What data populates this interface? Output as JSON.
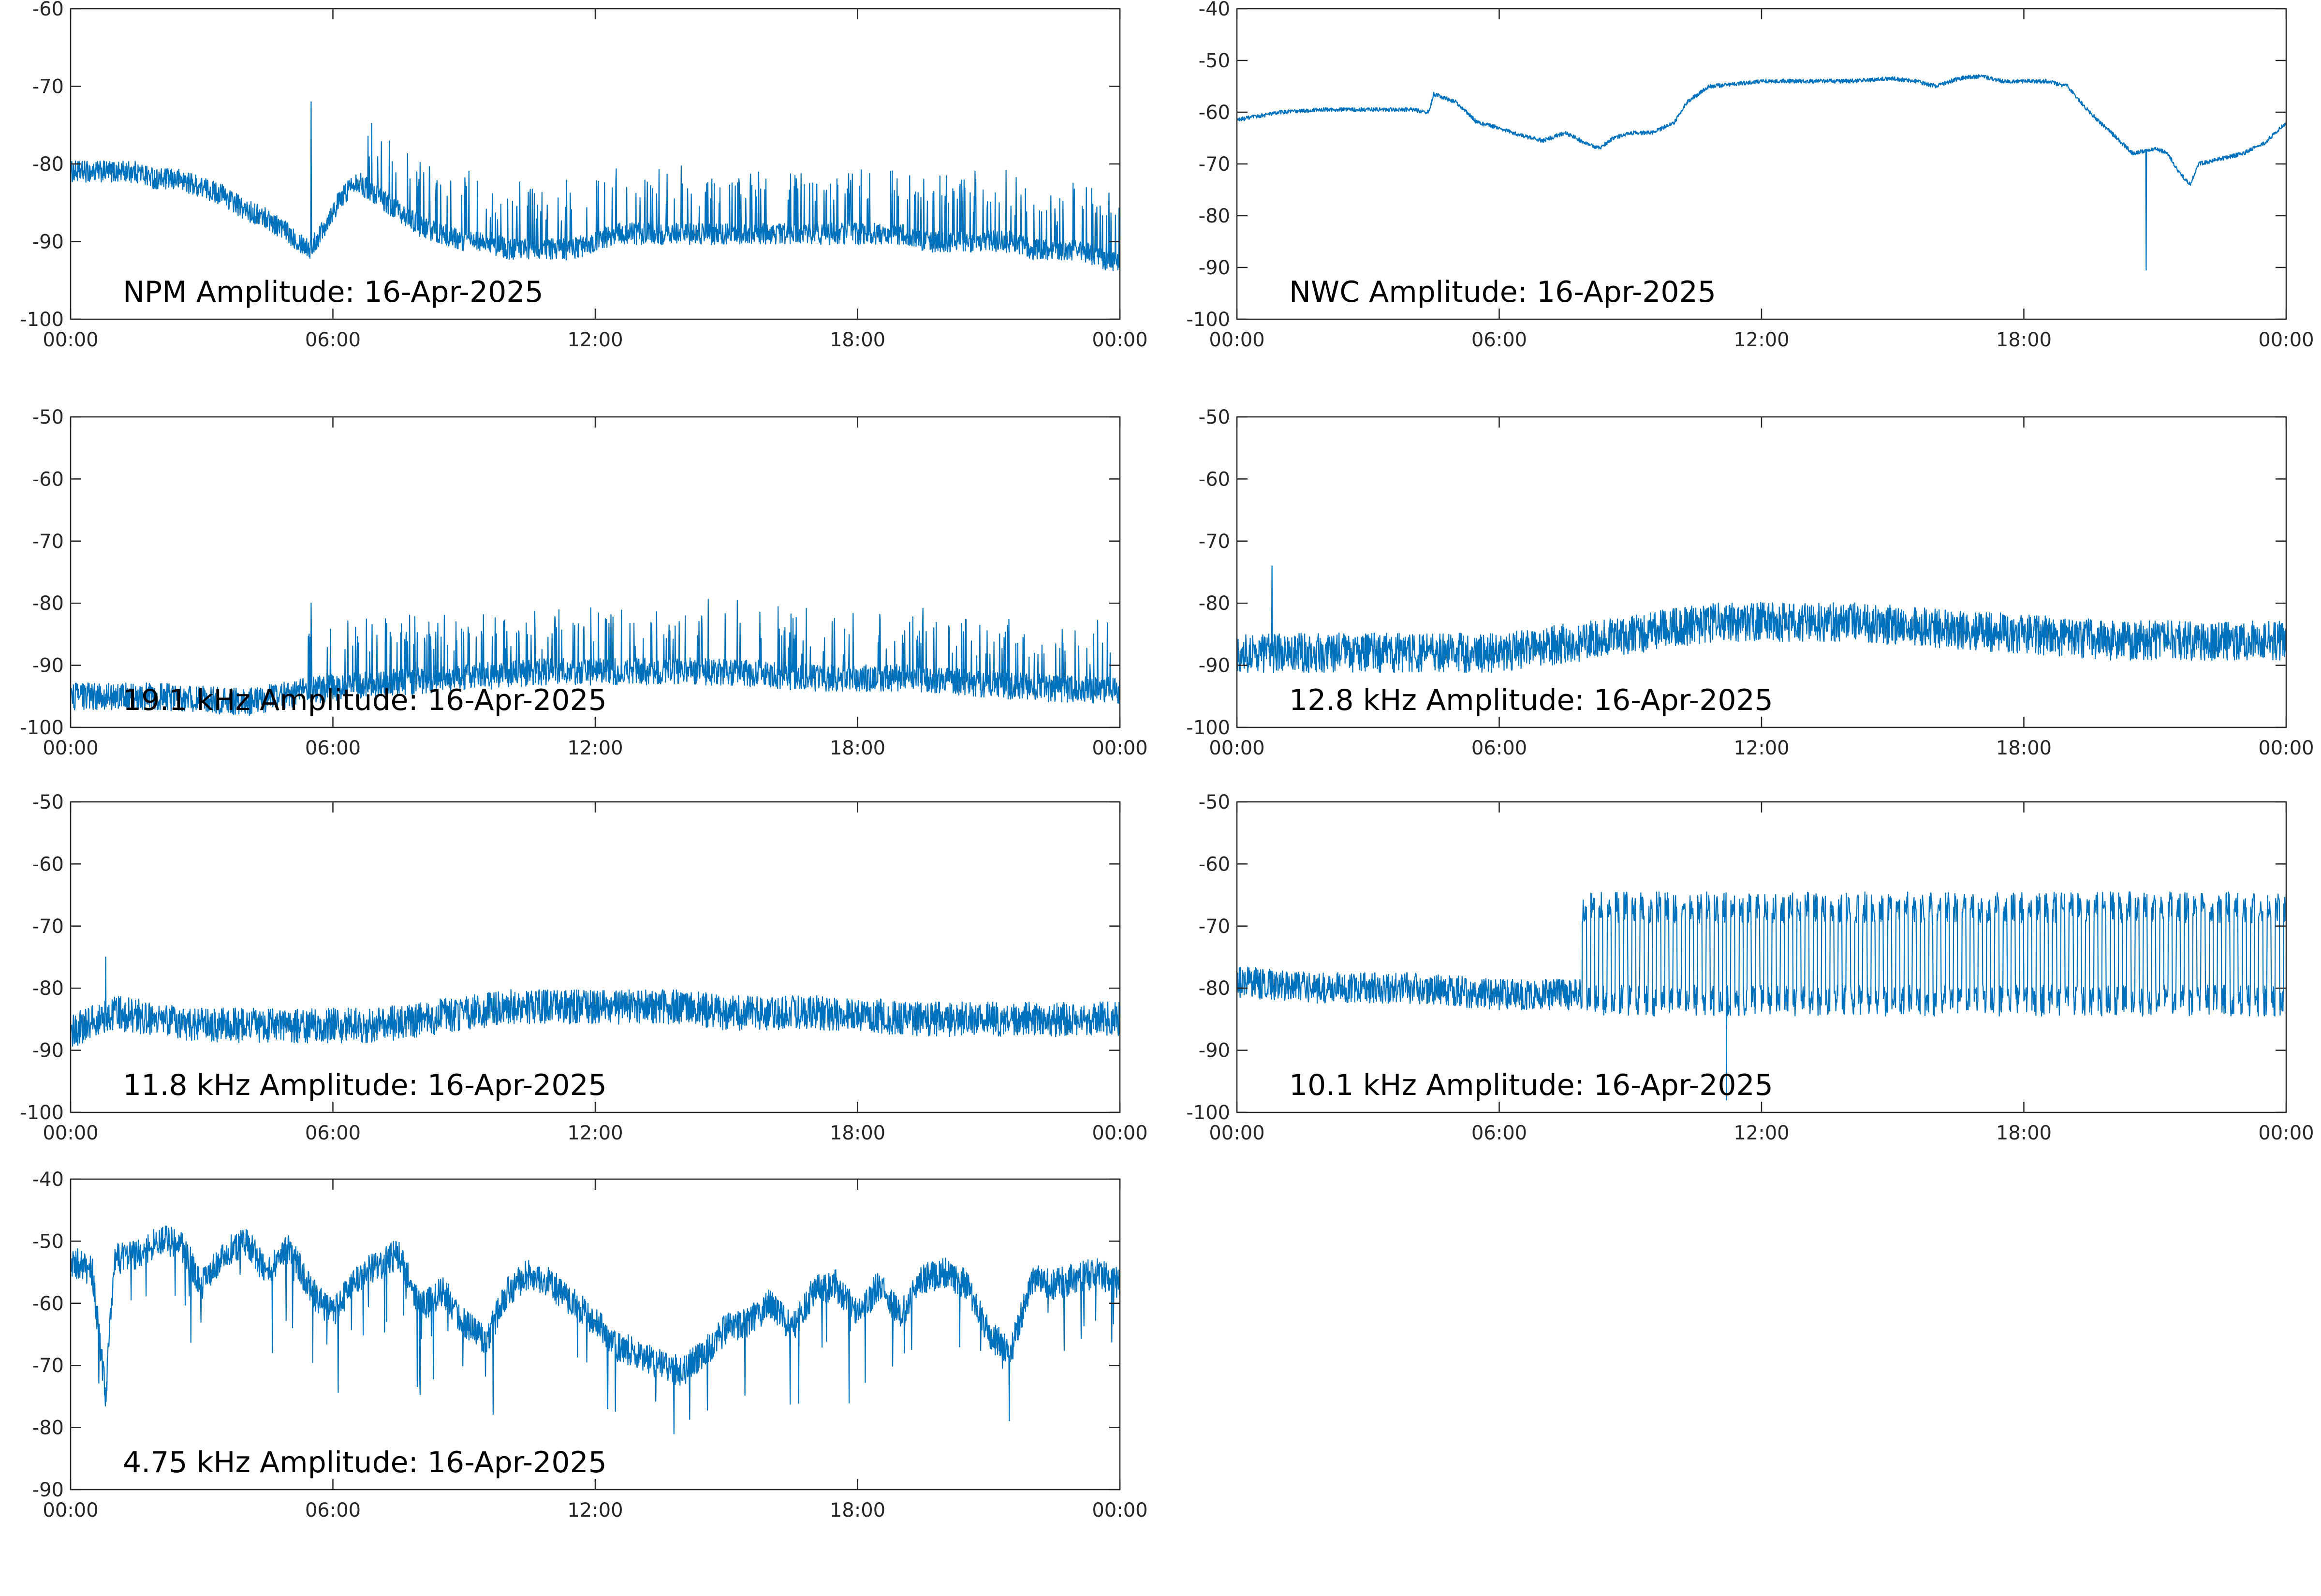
{
  "chart_data": [
    {
      "type": "line",
      "title": "NPM Amplitude: 16-Apr-2025",
      "xlabel": "",
      "ylabel": "",
      "x_ticks": [
        "00:00",
        "06:00",
        "12:00",
        "18:00",
        "00:00"
      ],
      "ylim": [
        -100,
        -60
      ],
      "y_ticks": [
        -60,
        -70,
        -80,
        -90,
        -100
      ],
      "grid": false,
      "series": [
        {
          "color": "#0072bd",
          "x_hours": [
            0,
            0.5,
            1,
            1.5,
            2,
            2.5,
            3,
            3.5,
            4,
            4.5,
            5,
            5.5,
            6,
            6.5,
            7,
            7.5,
            8,
            8.5,
            9,
            9.5,
            10,
            10.5,
            11,
            11.5,
            12,
            12.5,
            13,
            13.5,
            14,
            14.5,
            15,
            15.5,
            16,
            16.5,
            17,
            17.5,
            18,
            18.5,
            19,
            19.5,
            20,
            20.5,
            21,
            21.5,
            22,
            22.5,
            23,
            23.5,
            24
          ],
          "y": [
            -81,
            -81,
            -81,
            -81,
            -82,
            -82,
            -83,
            -84,
            -86,
            -87,
            -89,
            -91,
            -86,
            -82,
            -84,
            -86,
            -88,
            -89,
            -90,
            -90,
            -91,
            -91,
            -91,
            -91,
            -90,
            -89,
            -89,
            -89,
            -89,
            -89,
            -89,
            -89,
            -89,
            -89,
            -89,
            -89,
            -89,
            -89,
            -89,
            -90,
            -90,
            -90,
            -90,
            -90,
            -91,
            -91,
            -91,
            -92,
            -93
          ],
          "noise": 1.4,
          "spikes_up": {
            "start_h": 6.8,
            "end_h": 24,
            "per_hour": 14,
            "height": 8
          },
          "annotations": [
            {
              "x_hour": 5.5,
              "y": -72
            }
          ]
        }
      ]
    },
    {
      "type": "line",
      "title": "NWC Amplitude: 16-Apr-2025",
      "xlabel": "",
      "ylabel": "",
      "x_ticks": [
        "00:00",
        "06:00",
        "12:00",
        "18:00",
        "00:00"
      ],
      "ylim": [
        -100,
        -40
      ],
      "y_ticks": [
        -40,
        -50,
        -60,
        -70,
        -80,
        -90,
        -100
      ],
      "grid": false,
      "series": [
        {
          "color": "#0072bd",
          "x_hours": [
            0,
            1,
            2,
            3,
            4,
            4.4,
            4.5,
            5,
            5.5,
            6,
            6.5,
            7,
            7.5,
            8,
            8.3,
            8.6,
            9,
            9.5,
            10,
            10.3,
            10.8,
            11.5,
            12,
            13,
            14,
            15,
            15.5,
            16,
            16.5,
            17,
            17.5,
            18,
            18.5,
            19,
            19.5,
            20,
            20.5,
            21,
            21.3,
            21.5,
            21.8,
            22,
            22.5,
            23,
            23.5,
            24
          ],
          "y": [
            -61.5,
            -60,
            -59.5,
            -59.5,
            -59.5,
            -60,
            -56.5,
            -58,
            -62,
            -63,
            -64.5,
            -65.5,
            -64,
            -66,
            -67,
            -65,
            -64,
            -64,
            -62,
            -58,
            -55,
            -54.5,
            -54,
            -54,
            -54,
            -53.5,
            -54,
            -55,
            -53.5,
            -53,
            -54,
            -54,
            -54,
            -55,
            -60,
            -64,
            -68,
            -67,
            -68,
            -71,
            -74,
            -70,
            -69,
            -68,
            -66,
            -62
          ],
          "noise": 0.4,
          "annotations": [
            {
              "x_hour": 20.8,
              "y": -90.5
            }
          ]
        }
      ]
    },
    {
      "type": "line",
      "title": "19.1 kHz Amplitude: 16-Apr-2025",
      "xlabel": "",
      "ylabel": "",
      "x_ticks": [
        "00:00",
        "06:00",
        "12:00",
        "18:00",
        "00:00"
      ],
      "ylim": [
        -100,
        -50
      ],
      "y_ticks": [
        -50,
        -60,
        -70,
        -80,
        -90,
        -100
      ],
      "grid": false,
      "series": [
        {
          "color": "#0072bd",
          "x_hours": [
            0,
            2,
            4,
            5.5,
            7,
            9,
            11,
            13,
            15,
            17,
            19,
            21,
            23,
            24
          ],
          "y": [
            -95,
            -95,
            -96,
            -94,
            -93,
            -92,
            -91,
            -91,
            -91,
            -92,
            -92,
            -93,
            -94,
            -94
          ],
          "noise": 2.2,
          "spikes_up": {
            "start_h": 5.4,
            "end_h": 24,
            "per_hour": 12,
            "height": 10
          },
          "annotations": [
            {
              "x_hour": 5.5,
              "y": -80
            }
          ]
        }
      ]
    },
    {
      "type": "line",
      "title": "12.8 kHz Amplitude: 16-Apr-2025",
      "xlabel": "",
      "ylabel": "",
      "x_ticks": [
        "00:00",
        "06:00",
        "12:00",
        "18:00",
        "00:00"
      ],
      "ylim": [
        -100,
        -50
      ],
      "y_ticks": [
        -50,
        -60,
        -70,
        -80,
        -90,
        -100
      ],
      "grid": false,
      "series": [
        {
          "color": "#0072bd",
          "x_hours": [
            0,
            2,
            4,
            6,
            7,
            8,
            9,
            10,
            11,
            12,
            14,
            16,
            18,
            20,
            22,
            24
          ],
          "y": [
            -88,
            -88,
            -88,
            -88,
            -87,
            -86,
            -85,
            -84,
            -83,
            -83,
            -83,
            -84,
            -85,
            -86,
            -86,
            -86
          ],
          "noise": 3.2,
          "annotations": [
            {
              "x_hour": 0.8,
              "y": -74
            }
          ]
        }
      ]
    },
    {
      "type": "line",
      "title": "11.8 kHz Amplitude: 16-Apr-2025",
      "xlabel": "",
      "ylabel": "",
      "x_ticks": [
        "00:00",
        "06:00",
        "12:00",
        "18:00",
        "00:00"
      ],
      "ylim": [
        -100,
        -50
      ],
      "y_ticks": [
        -50,
        -60,
        -70,
        -80,
        -90,
        -100
      ],
      "grid": false,
      "series": [
        {
          "color": "#0072bd",
          "x_hours": [
            0,
            1,
            2,
            3,
            4,
            5,
            6,
            7,
            8,
            9,
            10,
            11,
            12,
            13,
            14,
            15,
            16,
            17,
            18,
            19,
            20,
            21,
            22,
            23,
            24
          ],
          "y": [
            -87,
            -84,
            -85,
            -86,
            -86,
            -86,
            -86,
            -86,
            -85,
            -84,
            -83,
            -83,
            -83,
            -83,
            -83,
            -84,
            -84,
            -84,
            -84,
            -85,
            -85,
            -85,
            -85,
            -85,
            -85
          ],
          "noise": 2.8,
          "annotations": [
            {
              "x_hour": 0.8,
              "y": -75
            }
          ]
        }
      ]
    },
    {
      "type": "line",
      "title": "10.1 kHz Amplitude: 16-Apr-2025",
      "xlabel": "",
      "ylabel": "",
      "x_ticks": [
        "00:00",
        "06:00",
        "12:00",
        "18:00",
        "00:00"
      ],
      "ylim": [
        -100,
        -50
      ],
      "y_ticks": [
        -50,
        -60,
        -70,
        -80,
        -90,
        -100
      ],
      "grid": false,
      "series": [
        {
          "color": "#0072bd",
          "x_hours": [
            0,
            2,
            4,
            6,
            7.9,
            8,
            10,
            12,
            14,
            16,
            18,
            20,
            22,
            24
          ],
          "y": [
            -79,
            -80,
            -80,
            -81,
            -81,
            -79,
            -78,
            -78,
            -78,
            -78,
            -78,
            -78,
            -78,
            -78
          ],
          "noise": 2.5,
          "oscillation": {
            "start_h": 7.9,
            "cycles_per_hour": 5.3,
            "high": -67,
            "low": -82
          },
          "annotations": [
            {
              "x_hour": 11.2,
              "y": -98
            }
          ]
        }
      ]
    },
    {
      "type": "line",
      "title": "4.75 kHz Amplitude: 16-Apr-2025",
      "xlabel": "",
      "ylabel": "",
      "x_ticks": [
        "00:00",
        "06:00",
        "12:00",
        "18:00",
        "00:00"
      ],
      "ylim": [
        -90,
        -40
      ],
      "y_ticks": [
        -40,
        -50,
        -60,
        -70,
        -80,
        -90
      ],
      "grid": false,
      "series": [
        {
          "color": "#0072bd",
          "x_hours": [
            0,
            0.5,
            0.8,
            1,
            1.5,
            2,
            2.5,
            3,
            3.5,
            4,
            4.5,
            5,
            5.5,
            6,
            6.5,
            7,
            7.5,
            8,
            8.5,
            9,
            9.5,
            10,
            10.5,
            11,
            11.5,
            12,
            12.5,
            13,
            13.5,
            14,
            14.5,
            15,
            15.5,
            16,
            16.5,
            17,
            17.5,
            18,
            18.5,
            19,
            19.5,
            20,
            20.5,
            21,
            21.5,
            22,
            22.5,
            23,
            23.5,
            24
          ],
          "y": [
            -53,
            -55,
            -75,
            -53,
            -52,
            -50,
            -50,
            -57,
            -52,
            -50,
            -55,
            -51,
            -58,
            -62,
            -56,
            -54,
            -52,
            -61,
            -58,
            -63,
            -66,
            -58,
            -55,
            -57,
            -60,
            -63,
            -67,
            -68,
            -70,
            -71,
            -68,
            -64,
            -63,
            -60,
            -64,
            -58,
            -57,
            -62,
            -57,
            -62,
            -56,
            -55,
            -57,
            -65,
            -68,
            -56,
            -57,
            -56,
            -55,
            -57
          ],
          "noise": 2.5,
          "dips": {
            "per_hour": 3,
            "depth": 14
          },
          "annotations": [
            {
              "x_hour": 13.8,
              "y": -81
            }
          ]
        }
      ]
    }
  ]
}
